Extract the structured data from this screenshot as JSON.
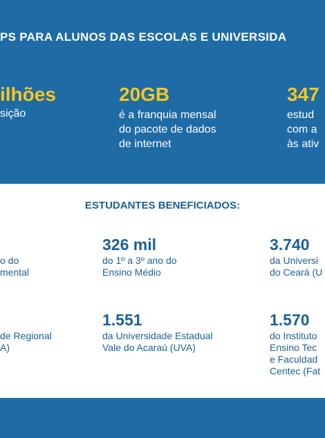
{
  "header": {
    "title": "PS PARA ALUNOS DAS ESCOLAS E UNIVERSIDA"
  },
  "highlights": [
    {
      "value": "ilhões",
      "lines": [
        "sição"
      ]
    },
    {
      "value": "20GB",
      "lines": [
        "é a franquia mensal",
        "do pacote de dados",
        "de internet"
      ]
    },
    {
      "value": "347",
      "lines": [
        "estud",
        "com a",
        "às ativ"
      ]
    }
  ],
  "section": {
    "title": "ESTUDANTES BENEFICIADOS:"
  },
  "items": [
    {
      "lines": [
        "o do",
        "mental"
      ]
    },
    {
      "value": "326 mil",
      "lines": [
        "do 1º a 3º ano do",
        "Ensino Médio"
      ]
    },
    {
      "value": "3.740",
      "lines": [
        "da Universi",
        "do Ceará (U"
      ]
    },
    {
      "lines": [
        "de Regional",
        "A)"
      ]
    },
    {
      "value": "1.551",
      "lines": [
        "da Universidade Estadual",
        "Vale do Acaraú (UVA)"
      ]
    },
    {
      "value": "1.570",
      "lines": [
        "do Instituto",
        "Ensino Tec",
        "e Faculdad",
        "Centec (Fat"
      ]
    }
  ]
}
